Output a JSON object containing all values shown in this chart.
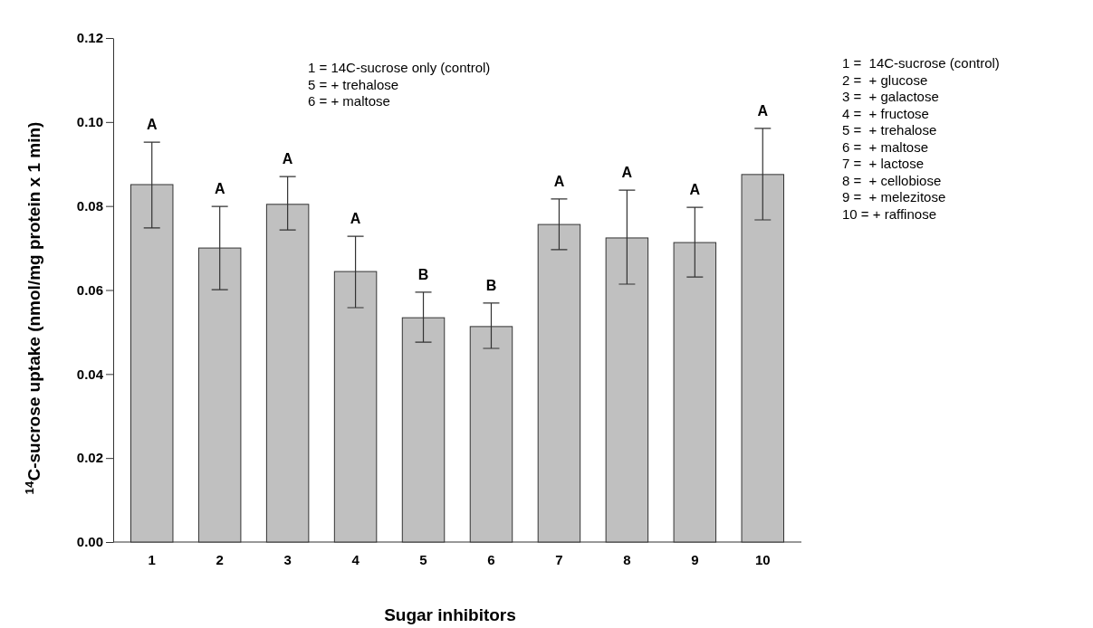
{
  "chart_data": {
    "type": "bar",
    "xlabel": "Sugar inhibitors",
    "ylabel": "$^{14}$C-sucrose uptake (nmol/mg protein x 1 min)",
    "categories": [
      "1",
      "2",
      "3",
      "4",
      "5",
      "6",
      "7",
      "8",
      "9",
      "10"
    ],
    "values": [
      0.0851,
      0.07,
      0.0804,
      0.0644,
      0.0534,
      0.0513,
      0.0756,
      0.0724,
      0.0713,
      0.0875
    ],
    "errors": [
      [
        0.0748,
        0.0952
      ],
      [
        0.0601,
        0.0799
      ],
      [
        0.0743,
        0.087
      ],
      [
        0.0558,
        0.0728
      ],
      [
        0.0476,
        0.0595
      ],
      [
        0.0461,
        0.0569
      ],
      [
        0.0696,
        0.0817
      ],
      [
        0.0614,
        0.0838
      ],
      [
        0.0631,
        0.0797
      ],
      [
        0.0767,
        0.0985
      ]
    ],
    "color": "#c0c0c0",
    "ylim": [
      0,
      0.12
    ],
    "yticks": [
      {
        "value": 0,
        "label": "0.00"
      },
      {
        "value": 0.02,
        "label": "0.02"
      },
      {
        "value": 0.04,
        "label": "0.04"
      },
      {
        "value": 0.06,
        "label": "0.06"
      },
      {
        "value": 0.08,
        "label": "0.08"
      },
      {
        "value": 0.1,
        "label": "0.10"
      },
      {
        "value": 0.12,
        "label": "0.12"
      }
    ],
    "grid": false,
    "annotations": [
      "1 = 14C-sucrose only (control)\n5 = + trehalose\n6 = + maltose",
      "1 =  14C-sucrose (control)\n2 =  + glucose\n3 =  + galactose\n4 =  + fructose\n5 =  + trehalose\n6 =  + maltose\n7 =  + lactose\n8 =  + cellobiose\n9 =  + melezitose\n10 = + raffinose",
      {
        "text": "A",
        "x": "1",
        "y": 0.0952
      },
      {
        "text": "A",
        "x": "2",
        "y": 0.0799
      },
      {
        "text": "A",
        "x": "3",
        "y": 0.087
      },
      {
        "text": "A",
        "x": "4",
        "y": 0.0728
      },
      {
        "text": "B",
        "x": "5",
        "y": 0.0595
      },
      {
        "text": "B",
        "x": "6",
        "y": 0.0569
      },
      {
        "text": "A",
        "x": "7",
        "y": 0.0817
      },
      {
        "text": "A",
        "x": "8",
        "y": 0.0838
      },
      {
        "text": "A",
        "x": "9",
        "y": 0.0797
      },
      {
        "text": "A",
        "x": "10",
        "y": 0.0985
      }
    ]
  }
}
